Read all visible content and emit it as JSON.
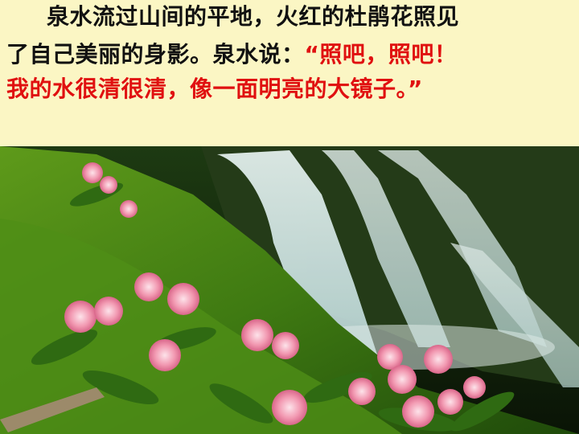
{
  "paragraph": {
    "line1": "泉水流过山间的平地，火红的杜鹃花照见",
    "line2_narration": "了自己美丽的身影。泉水说：",
    "line2_quote": "“照吧，照吧！",
    "line3": "我的水很清很清，像一面明亮的大镜子。”"
  },
  "photo": {
    "subject": "waterfall-with-azaleas"
  },
  "colors": {
    "background": "#fbf6c4",
    "body_text": "#111111",
    "quote_text": "#e01010"
  }
}
